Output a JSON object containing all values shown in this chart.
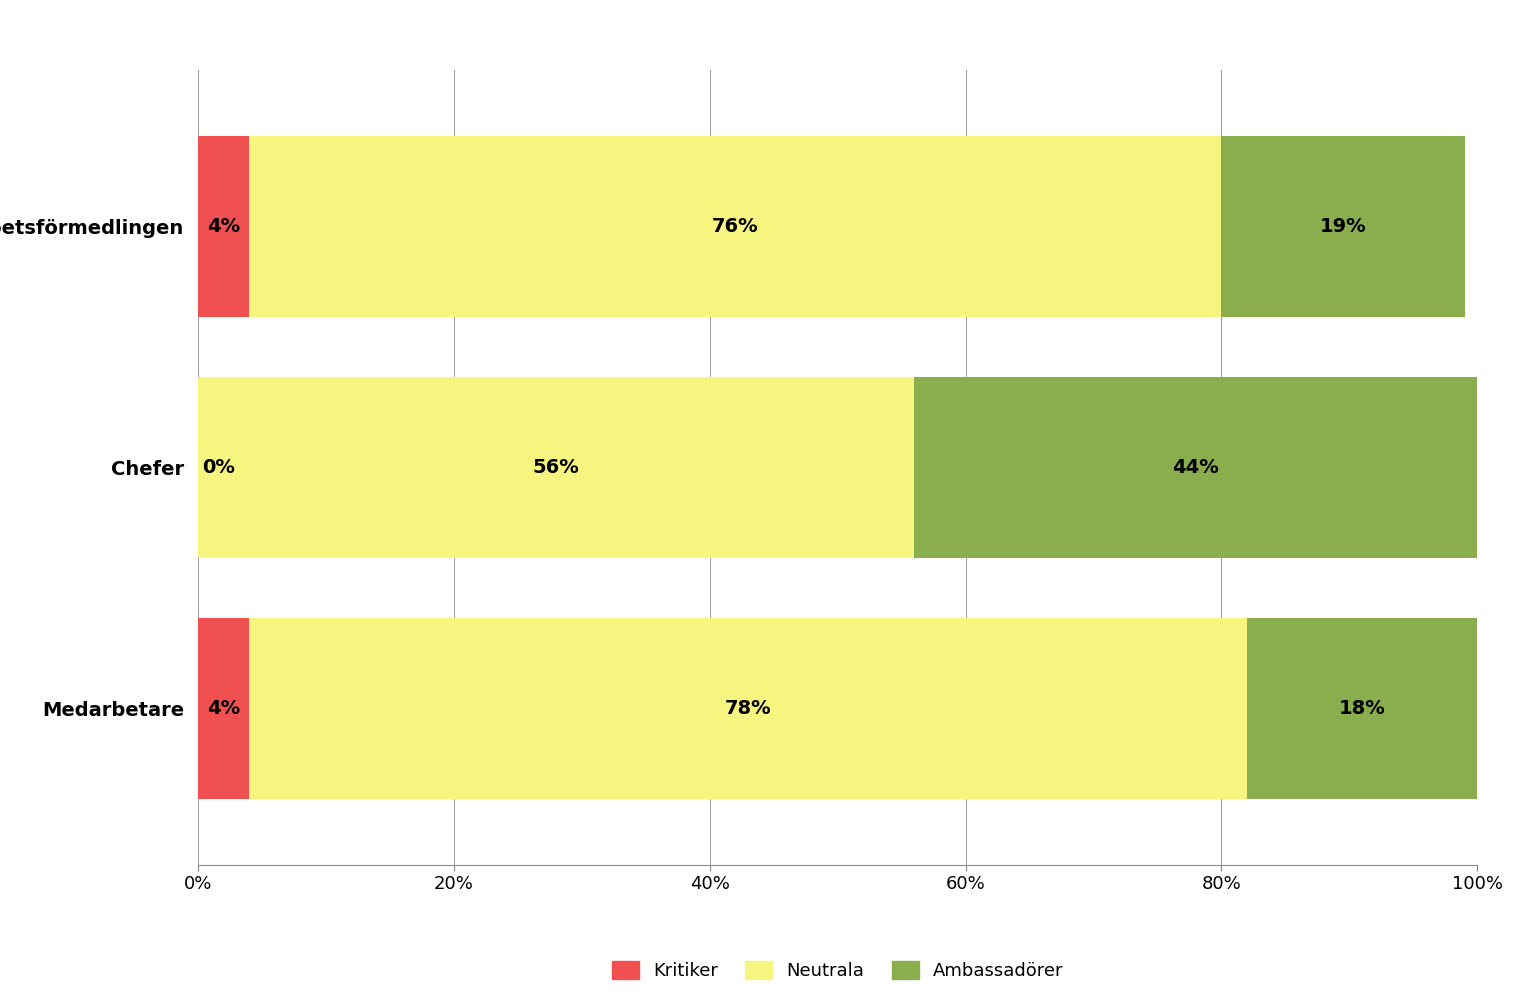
{
  "categories": [
    "Medarbetare",
    "Chefer",
    "Arbetsförmedlingen"
  ],
  "kritiker": [
    4,
    0,
    4
  ],
  "neutrala": [
    78,
    56,
    76
  ],
  "ambassadorer": [
    18,
    44,
    19
  ],
  "kritiker_color": "#F05050",
  "neutrala_color": "#F5F580",
  "ambassadorer_color": "#8AAD4E",
  "background_color": "#FFFFFF",
  "grid_color": "#999999",
  "xlabel_ticks": [
    "0%",
    "20%",
    "40%",
    "60%",
    "80%",
    "100%"
  ],
  "xlabel_vals": [
    0,
    20,
    40,
    60,
    80,
    100
  ],
  "legend_labels": [
    "Kritiker",
    "Neutrala",
    "Ambassadörer"
  ],
  "bar_height": 0.75,
  "figsize": [
    15.23,
    9.94
  ],
  "dpi": 100,
  "label_fontsize": 14,
  "tick_fontsize": 13,
  "legend_fontsize": 13,
  "ylabel_fontsize": 14
}
